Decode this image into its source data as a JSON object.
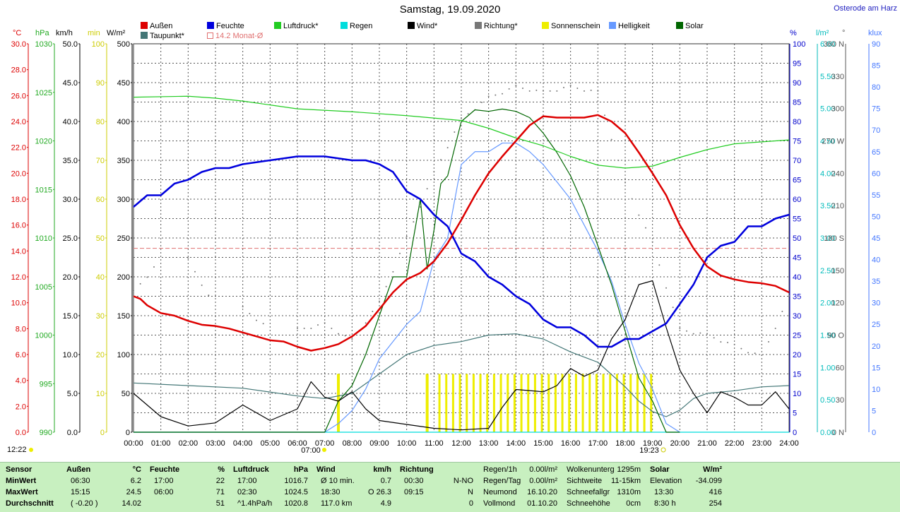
{
  "title": "Samstag, 19.09.2020",
  "station": "Osterode am Harz",
  "legend": [
    {
      "label": "Außen",
      "color": "#dd0000"
    },
    {
      "label": "Feuchte",
      "color": "#0000dd"
    },
    {
      "label": "Luftdruck*",
      "color": "#22cc22"
    },
    {
      "label": "Regen",
      "color": "#00dddd"
    },
    {
      "label": "Wind*",
      "color": "#000000"
    },
    {
      "label": "Richtung*",
      "color": "#777777"
    },
    {
      "label": "Sonnenschein",
      "color": "#eeee00"
    },
    {
      "label": "Helligkeit",
      "color": "#6699ff"
    },
    {
      "label": "Solar",
      "color": "#006600"
    },
    {
      "label": "Taupunkt*",
      "color": "#447777"
    },
    {
      "label": "14.2 Monat-Ø",
      "color": "#e07070"
    }
  ],
  "axes": {
    "left": [
      {
        "unit": "°C",
        "color": "#dd0000",
        "ticks": [
          "30.0",
          "28.0",
          "26.0",
          "24.0",
          "22.0",
          "20.0",
          "18.0",
          "16.0",
          "14.0",
          "12.0",
          "10.0",
          "8.0",
          "6.0",
          "4.0",
          "2.0",
          "0.0"
        ]
      },
      {
        "unit": "hPa",
        "color": "#22aa22",
        "ticks": [
          "1030",
          "1025",
          "1020",
          "1015",
          "1010",
          "1005",
          "1000",
          "995",
          "990"
        ]
      },
      {
        "unit": "km/h",
        "color": "#000000",
        "ticks": [
          "50.0",
          "45.0",
          "40.0",
          "35.0",
          "30.0",
          "25.0",
          "20.0",
          "15.0",
          "10.0",
          "5.0",
          "0.0"
        ]
      },
      {
        "unit": "min",
        "color": "#cccc00",
        "ticks": [
          "100",
          "90",
          "80",
          "70",
          "60",
          "50",
          "40",
          "30",
          "20",
          "10",
          "0"
        ]
      },
      {
        "unit": "W/m²",
        "color": "#000000",
        "ticks": [
          "500",
          "450",
          "400",
          "350",
          "300",
          "250",
          "200",
          "150",
          "100",
          "50",
          "0"
        ]
      }
    ],
    "right": [
      {
        "unit": "%",
        "color": "#0000cc",
        "ticks": [
          "100",
          "95",
          "90",
          "85",
          "80",
          "75",
          "70",
          "65",
          "60",
          "55",
          "50",
          "45",
          "40",
          "35",
          "30",
          "25",
          "20",
          "15",
          "10",
          "5",
          "0"
        ]
      },
      {
        "unit": "l/m²",
        "color": "#00bbbb",
        "ticks": [
          "6.00",
          "5.50",
          "5.00",
          "4.50",
          "4.00",
          "3.50",
          "3.00",
          "2.50",
          "2.00",
          "1.50",
          "1.00",
          "0.50",
          "0.00"
        ]
      },
      {
        "unit": "°",
        "color": "#555555",
        "ticks": [
          "360 N",
          "330",
          "300",
          "270 W",
          "240",
          "210",
          "180 S",
          "150",
          "120",
          "90 O",
          "60",
          "30",
          "0 N"
        ]
      },
      {
        "unit": "klux",
        "color": "#4477ff",
        "ticks": [
          "90",
          "85",
          "80",
          "75",
          "70",
          "65",
          "60",
          "55",
          "50",
          "45",
          "40",
          "35",
          "30",
          "25",
          "20",
          "15",
          "10",
          "5",
          "0"
        ]
      }
    ]
  },
  "x_ticks": [
    "00:00",
    "01:00",
    "02:00",
    "03:00",
    "04:00",
    "05:00",
    "06:00",
    "07:00",
    "08:00",
    "09:00",
    "10:00",
    "11:00",
    "12:00",
    "13:00",
    "14:00",
    "15:00",
    "16:00",
    "17:00",
    "18:00",
    "19:00",
    "20:00",
    "21:00",
    "22:00",
    "23:00",
    "24:00"
  ],
  "markers": {
    "noon": "12:22",
    "sunrise": "07:00",
    "sunset": "19:23"
  },
  "chart_data": {
    "type": "line",
    "title": "Samstag, 19.09.2020",
    "x_range": [
      "00:00",
      "24:00"
    ],
    "grid": true,
    "legend_position": "top",
    "monthly_mean_temp": 14.2,
    "series": [
      {
        "name": "Außen",
        "unit": "°C",
        "x": [
          0,
          0.25,
          0.5,
          1,
          1.5,
          2,
          2.5,
          3,
          3.5,
          4,
          4.5,
          5,
          5.5,
          6,
          6.5,
          7,
          7.5,
          8,
          8.5,
          9,
          9.5,
          10,
          10.5,
          11,
          11.5,
          12,
          12.5,
          13,
          13.5,
          14,
          14.5,
          15,
          15.5,
          16,
          16.5,
          17,
          17.5,
          18,
          18.5,
          19,
          19.5,
          20,
          20.5,
          21,
          21.5,
          22,
          22.5,
          23,
          23.5,
          24
        ],
        "values": [
          10.5,
          10.3,
          9.8,
          9.2,
          9.0,
          8.6,
          8.3,
          8.2,
          8.0,
          7.7,
          7.4,
          7.1,
          7.0,
          6.6,
          6.3,
          6.5,
          6.8,
          7.4,
          8.2,
          9.5,
          10.8,
          11.8,
          12.3,
          13.2,
          14.6,
          16.4,
          18.3,
          20.0,
          21.3,
          22.5,
          23.7,
          24.4,
          24.3,
          24.3,
          24.3,
          24.5,
          24.0,
          23.1,
          21.6,
          20.0,
          18.3,
          16.0,
          14.2,
          12.8,
          12.1,
          11.8,
          11.6,
          11.5,
          11.3,
          10.8
        ]
      },
      {
        "name": "Feuchte",
        "unit": "%",
        "x": [
          0,
          0.5,
          1,
          1.5,
          2,
          2.5,
          3,
          3.5,
          4,
          5,
          6,
          7,
          8,
          8.5,
          9,
          9.5,
          10,
          10.5,
          11,
          11.5,
          12,
          12.5,
          13,
          13.5,
          14,
          14.5,
          15,
          15.5,
          16,
          16.5,
          17,
          17.5,
          18,
          18.5,
          19,
          19.5,
          20,
          20.5,
          21,
          21.5,
          22,
          22.5,
          23,
          23.5,
          24
        ],
        "values": [
          58,
          61,
          61,
          64,
          65,
          67,
          68,
          68,
          69,
          70,
          71,
          71,
          70,
          70,
          69,
          67,
          62,
          60,
          56,
          53,
          46,
          44,
          40,
          38,
          35,
          33,
          29,
          27,
          27,
          25,
          22,
          22,
          24,
          24,
          26,
          28,
          33,
          38,
          45,
          48,
          49,
          53,
          53,
          55,
          56
        ]
      },
      {
        "name": "Luftdruck*",
        "unit": "hPa",
        "x": [
          0,
          2,
          3,
          4,
          5,
          6,
          8,
          10,
          12,
          13,
          14,
          15,
          16,
          17,
          18,
          19,
          20,
          21,
          22,
          23,
          24
        ],
        "values": [
          1024.5,
          1024.6,
          1024.4,
          1024.1,
          1023.7,
          1023.3,
          1023.0,
          1022.6,
          1022.1,
          1021.3,
          1020.3,
          1019.5,
          1018.4,
          1017.5,
          1017.2,
          1017.4,
          1018.3,
          1019.1,
          1019.7,
          1019.9,
          1020.1
        ]
      },
      {
        "name": "Regen",
        "unit": "l/m²",
        "x": [
          0,
          24
        ],
        "values": [
          0.0,
          0.0
        ]
      },
      {
        "name": "Wind*",
        "unit": "km/h",
        "x": [
          0,
          1,
          2,
          3,
          4,
          5,
          6,
          6.5,
          7,
          7.5,
          8,
          8.5,
          9,
          10,
          11,
          12,
          13,
          13.5,
          14,
          15,
          15.5,
          16,
          16.5,
          17,
          17.5,
          18,
          18.5,
          19,
          19.5,
          20,
          20.5,
          21,
          21.5,
          22,
          22.5,
          23,
          23.5,
          24
        ],
        "values": [
          5.0,
          2.0,
          0.8,
          1.2,
          3.5,
          1.5,
          3.0,
          6.5,
          4.5,
          4.0,
          5.2,
          3.0,
          1.5,
          1.0,
          0.5,
          0.3,
          0.5,
          3.2,
          5.5,
          5.2,
          6.0,
          8.2,
          7.2,
          8.0,
          12.0,
          14.5,
          19.0,
          19.5,
          13.5,
          8.0,
          5.0,
          2.5,
          5.2,
          4.5,
          3.5,
          3.5,
          5.2,
          3.0
        ]
      },
      {
        "name": "Richtung*",
        "unit": "°",
        "x": [
          0,
          2,
          4,
          6,
          7,
          8,
          9,
          10,
          11,
          12,
          13,
          14,
          15,
          16,
          17,
          18,
          19,
          20,
          21,
          22,
          23,
          24
        ],
        "values": [
          130,
          160,
          115,
          95,
          100,
          85,
          120,
          180,
          240,
          290,
          310,
          320,
          315,
          320,
          315,
          230,
          175,
          95,
          90,
          80,
          70,
          125
        ]
      },
      {
        "name": "Sonnenschein",
        "unit": "min",
        "x": [
          7.5,
          10.75,
          11.25,
          11.5,
          12,
          12.5,
          13,
          13.5,
          14,
          14.5,
          15,
          15.5,
          16,
          16.5,
          17,
          17.5,
          18,
          18.5,
          19
        ],
        "values": [
          15,
          15,
          15,
          15,
          15,
          15,
          15,
          15,
          15,
          15,
          15,
          15,
          15,
          15,
          15,
          15,
          15,
          15,
          15
        ]
      },
      {
        "name": "Helligkeit",
        "unit": "klux",
        "x": [
          0,
          6.5,
          7,
          7.5,
          8,
          8.5,
          9,
          9.5,
          10,
          10.5,
          11,
          11.5,
          12,
          12.5,
          13,
          13.5,
          14,
          14.5,
          15,
          15.5,
          16,
          16.5,
          17,
          17.5,
          18,
          18.5,
          19,
          19.5,
          20
        ],
        "values": [
          0,
          0,
          0,
          2,
          5,
          10,
          17,
          21,
          25,
          28,
          40,
          45,
          62,
          65,
          65,
          67,
          67,
          65,
          62,
          58,
          54,
          48,
          42,
          35,
          25,
          16,
          10,
          2,
          0
        ]
      },
      {
        "name": "Solar",
        "unit": "W/m²",
        "x": [
          0,
          7,
          7.5,
          8,
          8.5,
          9,
          9.5,
          10,
          10.5,
          10.75,
          11,
          11.25,
          11.5,
          12,
          12.5,
          13,
          13.5,
          14,
          14.5,
          15,
          15.5,
          16,
          16.5,
          17,
          17.5,
          18,
          18.5,
          19,
          19.5,
          20
        ],
        "values": [
          0,
          0,
          40,
          60,
          100,
          150,
          200,
          200,
          300,
          210,
          260,
          320,
          330,
          400,
          415,
          413,
          416,
          413,
          405,
          385,
          360,
          330,
          290,
          240,
          190,
          130,
          70,
          40,
          0,
          0
        ]
      },
      {
        "name": "Taupunkt*",
        "unit": "°C",
        "x": [
          0,
          2,
          4,
          6,
          7,
          8,
          9,
          10,
          11,
          12,
          13,
          14,
          15,
          16,
          17,
          18,
          18.5,
          19,
          19.5,
          20,
          20.5,
          21,
          22,
          23,
          24
        ],
        "values": [
          3.8,
          3.6,
          3.4,
          2.8,
          2.6,
          3.0,
          4.5,
          6.0,
          6.7,
          7.0,
          7.5,
          7.6,
          7.2,
          6.2,
          5.4,
          3.5,
          2.4,
          1.6,
          1.2,
          1.7,
          2.6,
          3.0,
          3.2,
          3.5,
          3.6
        ]
      }
    ]
  },
  "stats": {
    "headers": [
      {
        "label": "Sensor"
      },
      {
        "label": "Außen",
        "unit": "°C"
      },
      {
        "label": "Feuchte",
        "unit": "%"
      },
      {
        "label": "Luftdruck",
        "unit": "hPa"
      },
      {
        "label": "Wind",
        "unit": "km/h"
      },
      {
        "label": "Richtung"
      }
    ],
    "row_labels": [
      "MinWert",
      "MaxWert",
      "Durchschnitt"
    ],
    "aussen": [
      [
        "06:30",
        "6.2"
      ],
      [
        "15:15",
        "24.5"
      ],
      [
        "( -0.20 )",
        "14.02"
      ]
    ],
    "feuchte": [
      [
        "17:00",
        "22"
      ],
      [
        "06:00",
        "71"
      ],
      [
        "",
        "51"
      ]
    ],
    "luftdruck": [
      [
        "17:00",
        "1016.7"
      ],
      [
        "02:30",
        "1024.5"
      ],
      [
        "^1.4hPa/h",
        "1020.8"
      ]
    ],
    "wind": [
      [
        "Ø 10 min.",
        "0.7"
      ],
      [
        "18:30",
        "O 26.3"
      ],
      [
        "117.0 km",
        "4.9"
      ]
    ],
    "richtung": [
      [
        "00:30",
        "N-NO"
      ],
      [
        "09:15",
        "N"
      ],
      [
        "",
        "0"
      ]
    ],
    "regen": [
      [
        "Regen/1h",
        "0.00l/m²"
      ],
      [
        "Regen/Tag",
        "0.00l/m²"
      ],
      [
        "Neumond",
        "16.10.20"
      ],
      [
        "Vollmond",
        "01.10.20"
      ]
    ],
    "wolken": [
      [
        "Wolkenunterg",
        "1295m"
      ],
      [
        "Sichtweite",
        "11-15km"
      ],
      [
        "Schneefallgr",
        "1310m"
      ],
      [
        "Schneehöhe",
        "0cm"
      ]
    ],
    "solar": {
      "label": "Solar",
      "unit": "W/m²",
      "rows": [
        [
          "Elevation",
          "-34.099"
        ],
        [
          "13:30",
          "416"
        ],
        [
          "8:30 h",
          "254"
        ]
      ]
    }
  }
}
